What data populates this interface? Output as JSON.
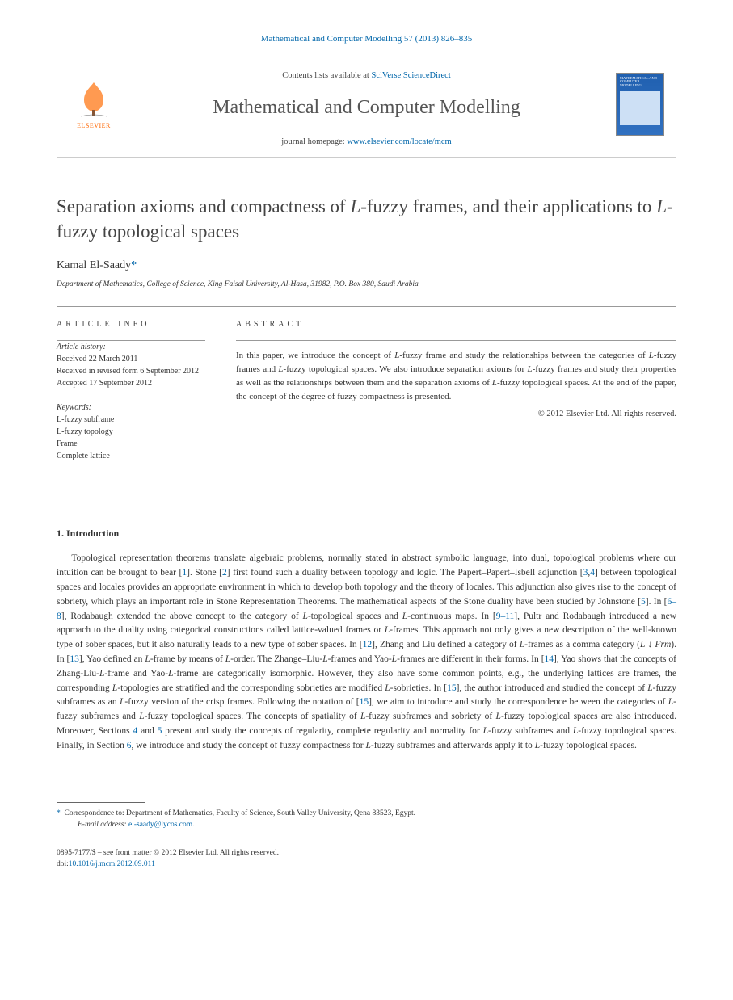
{
  "citation": {
    "text": "Mathematical and Computer Modelling 57 (2013) 826–835"
  },
  "header": {
    "contents_prefix": "Contents lists available at ",
    "contents_link": "SciVerse ScienceDirect",
    "journal_name": "Mathematical and Computer Modelling",
    "homepage_prefix": "journal homepage: ",
    "homepage_link": "www.elsevier.com/locate/mcm",
    "elsevier_label": "ELSEVIER",
    "thumb_title": "MATHEMATICAL AND COMPUTER MODELLING"
  },
  "title": {
    "pre": "Separation axioms and compactness of ",
    "ital1": "L",
    "mid": "-fuzzy frames, and their applications to ",
    "ital2": "L",
    "post": "-fuzzy topological spaces"
  },
  "author": {
    "name": "Kamal El-Saady",
    "star": "*"
  },
  "affiliation": "Department of Mathematics, College of Science, King Faisal University, Al-Hasa, 31982, P.O. Box 380, Saudi Arabia",
  "info": {
    "heading": "ARTICLE INFO",
    "history_label": "Article history:",
    "received": "Received 22 March 2011",
    "revised": "Received in revised form 6 September 2012",
    "accepted": "Accepted 17 September 2012",
    "keywords_label": "Keywords:",
    "kw1_pre": "",
    "kw1_ital": "L",
    "kw1_post": "-fuzzy subframe",
    "kw2_pre": "",
    "kw2_ital": "L",
    "kw2_post": "-fuzzy topology",
    "kw3": "Frame",
    "kw4": "Complete lattice"
  },
  "abstract": {
    "heading": "ABSTRACT",
    "text_parts": [
      "In this paper, we introduce the concept of ",
      "L",
      "-fuzzy frame and study the relationships between the categories of ",
      "L",
      "-fuzzy frames and ",
      "L",
      "-fuzzy topological spaces. We also introduce separation axioms for ",
      "L",
      "-fuzzy frames and study their properties as well as the relationships between them and the separation axioms of ",
      "L",
      "-fuzzy topological spaces. At the end of the paper, the concept of the degree of fuzzy compactness is presented."
    ],
    "copyright": "© 2012 Elsevier Ltd. All rights reserved."
  },
  "section": {
    "heading": "1.  Introduction"
  },
  "body": {
    "html": "Topological representation theorems translate algebraic problems, normally stated in abstract symbolic language, into dual, topological problems where our intuition can be brought to bear [<a>1</a>]. Stone [<a>2</a>] first found such a duality between topology and logic. The Papert–Papert–Isbell adjunction [<a>3</a>,<a>4</a>] between topological spaces and locales provides an appropriate environment in which to develop both topology and the theory of locales. This adjunction also gives rise to the concept of sobriety, which plays an important role in Stone Representation Theorems. The mathematical aspects of the Stone duality have been studied by Johnstone [<a>5</a>]. In [<a>6–8</a>], Rodabaugh extended the above concept to the category of <span class=\"ital\">L</span>-topological spaces and <span class=\"ital\">L</span>-continuous maps. In [<a>9–11</a>], Pultr and Rodabaugh introduced a new approach to the duality using categorical constructions called lattice-valued frames or <span class=\"ital\">L</span>-frames. This approach not only gives a new description of the well-known type of sober spaces, but it also naturally leads to a new type of sober spaces. In [<a>12</a>], Zhang and Liu defined a category of <span class=\"ital\">L</span>-frames as a comma category (<span class=\"ital\">L</span> ↓ <span class=\"ital\">Frm</span>). In [<a>13</a>], Yao defined an <span class=\"ital\">L</span>-frame by means of <span class=\"ital\">L</span>-order. The Zhange–Liu-<span class=\"ital\">L</span>-frames and Yao-<span class=\"ital\">L</span>-frames are different in their forms. In [<a>14</a>], Yao shows that the concepts of Zhang-Liu-<span class=\"ital\">L</span>-frame and Yao-<span class=\"ital\">L</span>-frame are categorically isomorphic. However, they also have some common points, e.g., the underlying lattices are frames, the corresponding <span class=\"ital\">L</span>-topologies are stratified and the corresponding sobrieties are modified <span class=\"ital\">L</span>-sobrieties. In [<a>15</a>], the author introduced and studied the concept of <span class=\"ital\">L</span>-fuzzy subframes as an <span class=\"ital\">L</span>-fuzzy version of the crisp frames. Following the notation of [<a>15</a>], we aim to introduce and study the correspondence between the categories of <span class=\"ital\">L</span>-fuzzy subframes and <span class=\"ital\">L</span>-fuzzy topological spaces. The concepts of spatiality of <span class=\"ital\">L</span>-fuzzy subframes and sobriety of <span class=\"ital\">L</span>-fuzzy topological spaces are also introduced. Moreover, Sections <a>4</a> and <a>5</a> present and study the concepts of regularity, complete regularity and normality for <span class=\"ital\">L</span>-fuzzy subframes and <span class=\"ital\">L</span>-fuzzy topological spaces. Finally, in Section <a>6</a>, we introduce and study the concept of fuzzy compactness for <span class=\"ital\">L</span>-fuzzy subframes and afterwards apply it to <span class=\"ital\">L</span>-fuzzy topological spaces."
  },
  "footnote": {
    "star": "*",
    "corr_prefix": "Correspondence to: ",
    "corr_text": "Department of Mathematics, Faculty of Science, South Valley University, Qena 83523, Egypt.",
    "email_label": "E-mail address:",
    "email": "el-saady@lycos.com",
    "email_suffix": "."
  },
  "bottom": {
    "line1": "0895-7177/$ – see front matter © 2012 Elsevier Ltd. All rights reserved.",
    "doi_label": "doi:",
    "doi": "10.1016/j.mcm.2012.09.011"
  },
  "colors": {
    "link": "#0066aa",
    "text": "#333333",
    "heading": "#444444",
    "elsevier_orange": "#ff6600",
    "thumb_bg": "#2060b0"
  }
}
